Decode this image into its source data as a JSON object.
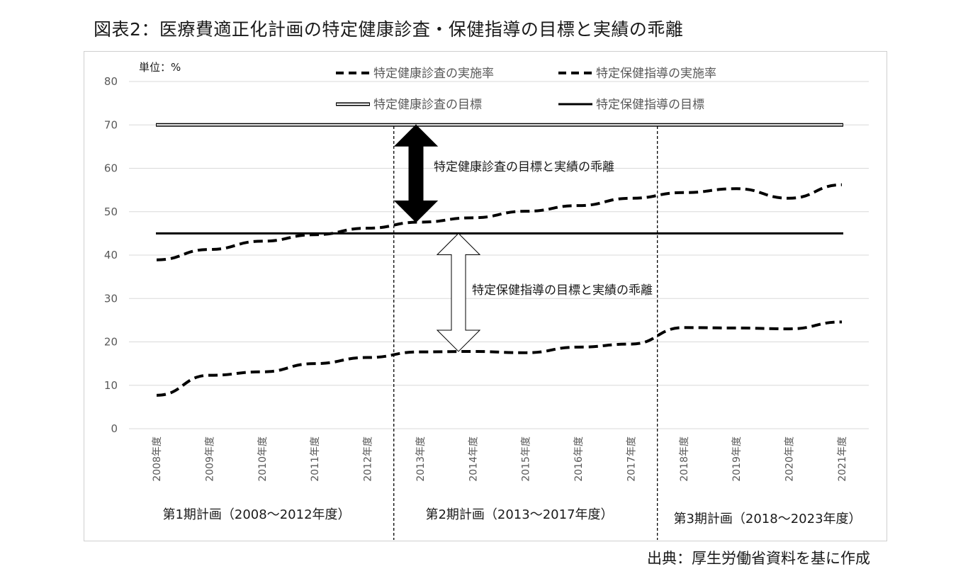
{
  "title": "図表2：医療費適正化計画の特定健康診査・保健指導の目標と実績の乖離",
  "source": "出典：厚生労働省資料を基に作成",
  "colors": {
    "line": "#000000",
    "grid": "#d9d9d9",
    "axis_text": "#595959"
  },
  "chart_data": {
    "type": "line",
    "unit_label": "単位：%",
    "ylim": [
      0,
      80
    ],
    "yticks": [
      "0",
      "10",
      "20",
      "30",
      "40",
      "50",
      "60",
      "70",
      "80"
    ],
    "grid": true,
    "legend_position": "top",
    "categories": [
      "2008年度",
      "2009年度",
      "2010年度",
      "2011年度",
      "2012年度",
      "2013年度",
      "2014年度",
      "2015年度",
      "2016年度",
      "2017年度",
      "2018年度",
      "2019年度",
      "2020年度",
      "2021年度"
    ],
    "series": [
      {
        "name": "特定健康診査の実施率",
        "style": "dashed",
        "values": [
          38.9,
          41.3,
          43.2,
          44.7,
          46.2,
          47.6,
          48.6,
          50.1,
          51.4,
          53.1,
          54.4,
          55.3,
          53.1,
          56.2
        ]
      },
      {
        "name": "特定保健指導の実施率",
        "style": "dashed",
        "values": [
          7.7,
          12.3,
          13.1,
          15.0,
          16.4,
          17.7,
          17.8,
          17.5,
          18.8,
          19.5,
          23.3,
          23.2,
          23.0,
          24.6
        ]
      },
      {
        "name": "特定健康診査の目標",
        "style": "double",
        "values": [
          70,
          70,
          70,
          70,
          70,
          70,
          70,
          70,
          70,
          70,
          70,
          70,
          70,
          70
        ]
      },
      {
        "name": "特定保健指導の目標",
        "style": "solid",
        "values": [
          45,
          45,
          45,
          45,
          45,
          45,
          45,
          45,
          45,
          45,
          45,
          45,
          45,
          45
        ]
      }
    ],
    "annotations": [
      {
        "text": "特定健康診査の目標と実績の乖離",
        "from": 70,
        "to": 47.6,
        "arrow": "filled"
      },
      {
        "text": "特定保健指導の目標と実績の乖離",
        "from": 45,
        "to": 17.8,
        "arrow": "outline"
      }
    ],
    "periods": [
      {
        "label": "第1期計画（2008～2012年度）"
      },
      {
        "label": "第2期計画（2013～2017年度）"
      },
      {
        "label": "第3期計画（2018～2023年度）"
      }
    ]
  }
}
